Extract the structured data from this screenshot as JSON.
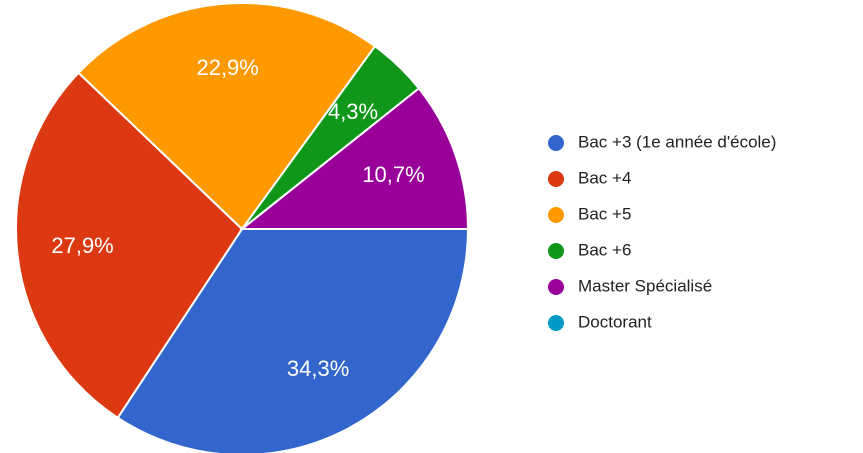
{
  "chart_data": {
    "type": "pie",
    "categories": [
      "Bac +3 (1e année d'école)",
      "Bac +4",
      "Bac +5",
      "Bac +6",
      "Master Spécialisé",
      "Doctorant"
    ],
    "values": [
      34.3,
      27.9,
      22.9,
      4.3,
      10.7,
      0
    ],
    "value_labels": [
      "34,3%",
      "27,9%",
      "22,9%",
      "4,3%",
      "10,7%",
      null
    ],
    "colors": [
      "#3366cc",
      "#dc3912",
      "#ff9900",
      "#109618",
      "#990099",
      "#0099c6"
    ],
    "legend": "right"
  }
}
